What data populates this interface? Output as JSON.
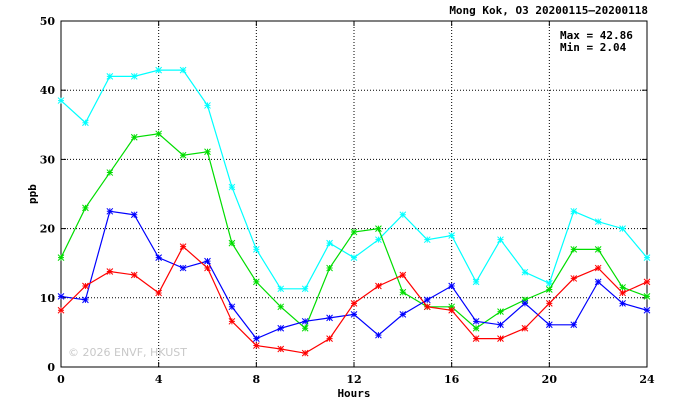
{
  "chart_data": {
    "type": "line",
    "title": "Mong Kok, O3 20200115–20200118",
    "xlabel": "Hours",
    "ylabel": "ppb",
    "xlim": [
      0,
      24
    ],
    "ylim": [
      0,
      50
    ],
    "x_ticks": [
      "0",
      "4",
      "8",
      "12",
      "16",
      "20",
      "24"
    ],
    "y_ticks": [
      "0",
      "10",
      "20",
      "30",
      "40",
      "50"
    ],
    "grid": true,
    "annotations": {
      "max_text": "Max = 42.86",
      "min_text": "Min =  2.04"
    },
    "watermark": "© 2026  ENVF, HKUST",
    "x": [
      0,
      1,
      2,
      3,
      4,
      5,
      6,
      7,
      8,
      9,
      10,
      11,
      12,
      13,
      14,
      15,
      16,
      17,
      18,
      19,
      20,
      21,
      22,
      23,
      24
    ],
    "series": [
      {
        "color": "#00ffff",
        "values": [
          38.5,
          35.3,
          42.0,
          42.0,
          42.9,
          42.9,
          37.8,
          26.0,
          17.0,
          11.3,
          11.3,
          17.9,
          15.8,
          18.4,
          22.0,
          18.4,
          19.0,
          12.3,
          18.4,
          13.7,
          12.1,
          22.5,
          21.0,
          20.0,
          15.8
        ]
      },
      {
        "color": "#00dd00",
        "values": [
          15.8,
          23.0,
          28.1,
          33.2,
          33.7,
          30.6,
          31.1,
          17.9,
          12.3,
          8.7,
          5.6,
          14.3,
          19.5,
          20.0,
          10.8,
          8.7,
          8.7,
          5.6,
          8.0,
          9.7,
          11.2,
          17.0,
          17.0,
          11.5,
          10.2
        ]
      },
      {
        "color": "#0000ff",
        "values": [
          10.2,
          9.7,
          22.5,
          22.0,
          15.8,
          14.3,
          15.3,
          8.7,
          4.1,
          5.6,
          6.6,
          7.1,
          7.6,
          4.6,
          7.6,
          9.7,
          11.7,
          6.6,
          6.1,
          9.2,
          6.1,
          6.1,
          12.3,
          9.2,
          8.2
        ]
      },
      {
        "color": "#ff0000",
        "values": [
          8.2,
          11.7,
          13.8,
          13.3,
          10.7,
          17.4,
          14.3,
          6.6,
          3.1,
          2.6,
          2.0,
          4.1,
          9.2,
          11.7,
          13.3,
          8.7,
          8.2,
          4.1,
          4.1,
          5.6,
          9.2,
          12.8,
          14.3,
          10.7,
          12.3
        ]
      }
    ]
  }
}
